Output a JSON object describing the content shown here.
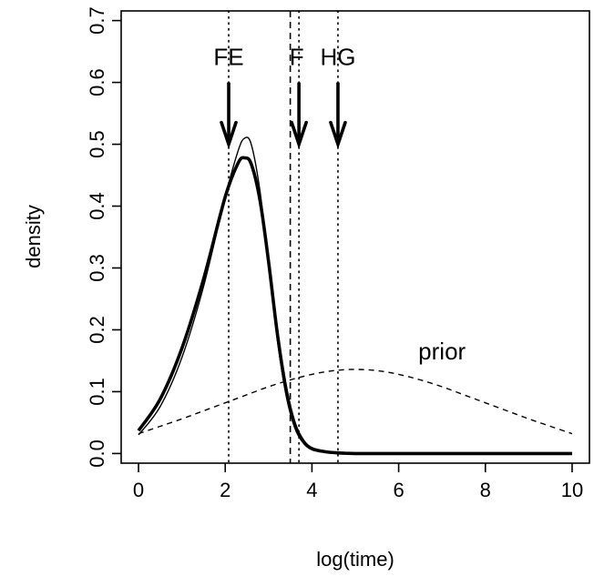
{
  "chart_data": {
    "type": "line",
    "title": "",
    "xlabel": "log(time)",
    "ylabel": "density",
    "xlim": [
      -0.4,
      10.4
    ],
    "ylim": [
      -0.0156,
      0.7156
    ],
    "xticks": [
      0,
      2,
      4,
      6,
      8,
      10
    ],
    "xtick_labels": [
      "0",
      "2",
      "4",
      "6",
      "8",
      "10"
    ],
    "yticks": [
      0.0,
      0.1,
      0.2,
      0.3,
      0.4,
      0.5,
      0.6,
      0.7
    ],
    "ytick_labels": [
      "0.0",
      "0.1",
      "0.2",
      "0.3",
      "0.4",
      "0.5",
      "0.6",
      "0.7"
    ],
    "grid": false,
    "legend": "none",
    "series": [
      {
        "style": "solid-thick",
        "x": [
          0,
          0.5,
          1.0,
          1.5,
          2.0,
          2.3,
          2.45,
          2.6,
          2.8,
          3.0,
          3.2,
          3.4,
          3.6,
          3.8,
          4.0,
          4.3,
          4.6,
          5.0,
          6.0,
          8.0,
          10.0
        ],
        "y": [
          0.037,
          0.088,
          0.17,
          0.282,
          0.415,
          0.47,
          0.478,
          0.468,
          0.41,
          0.31,
          0.195,
          0.105,
          0.048,
          0.02,
          0.008,
          0.003,
          0.001,
          0.0,
          0.0,
          0.0,
          0.0
        ]
      },
      {
        "style": "solid-thin",
        "x": [
          0,
          0.5,
          1.0,
          1.5,
          2.0,
          2.3,
          2.45,
          2.6,
          2.8,
          3.0,
          3.2,
          3.4,
          3.6,
          3.8,
          4.0,
          4.3,
          4.6,
          5.0,
          6.0,
          8.0,
          10.0
        ],
        "y": [
          0.03,
          0.076,
          0.155,
          0.27,
          0.415,
          0.49,
          0.51,
          0.5,
          0.425,
          0.305,
          0.185,
          0.095,
          0.042,
          0.017,
          0.006,
          0.002,
          0.001,
          0.0,
          0.0,
          0.0,
          0.0
        ]
      },
      {
        "name": "prior",
        "style": "dashed",
        "x": [
          0,
          0.5,
          1.0,
          1.5,
          2.0,
          2.5,
          3.0,
          3.5,
          4.0,
          4.5,
          5.0,
          5.5,
          6.0,
          6.5,
          7.0,
          7.5,
          8.0,
          8.5,
          9.0,
          9.5,
          10.0
        ],
        "y": [
          0.032,
          0.044,
          0.056,
          0.069,
          0.082,
          0.095,
          0.108,
          0.119,
          0.128,
          0.134,
          0.136,
          0.134,
          0.128,
          0.119,
          0.108,
          0.095,
          0.082,
          0.069,
          0.056,
          0.044,
          0.032
        ]
      }
    ],
    "vlines": [
      {
        "x": 2.08,
        "style": "dotted"
      },
      {
        "x": 3.5,
        "style": "dashed"
      },
      {
        "x": 3.7,
        "style": "dotted"
      },
      {
        "x": 4.6,
        "style": "dotted"
      }
    ],
    "arrows": [
      {
        "label": "FE",
        "x": 2.08,
        "label_x": 2.08,
        "y_from": 0.6,
        "y_to": 0.5
      },
      {
        "label": "F",
        "x": 3.7,
        "label_x": 3.65,
        "y_from": 0.6,
        "y_to": 0.5
      },
      {
        "label": "HG",
        "x": 4.6,
        "label_x": 4.6,
        "y_from": 0.6,
        "y_to": 0.5
      }
    ],
    "annotations": [
      {
        "text": "prior",
        "x": 7.0,
        "y": 0.152
      }
    ]
  }
}
